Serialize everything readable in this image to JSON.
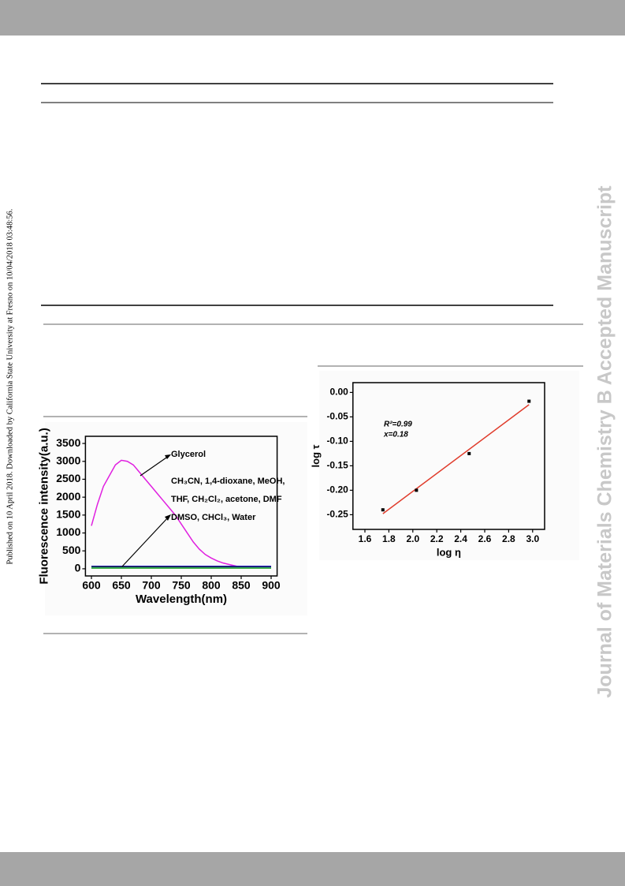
{
  "side_note": "Published on 10 April 2018. Downloaded by California State University at Fresno on 10/04/2018 03:48:56.",
  "watermark": "Journal of Materials Chemistry B Accepted Manuscript",
  "chart_data": [
    {
      "type": "line",
      "xlabel": "Wavelength(nm)",
      "ylabel": "Fluorescence intensity(a.u.)",
      "xlim": [
        590,
        910
      ],
      "xticks": [
        600,
        650,
        700,
        750,
        800,
        850,
        900
      ],
      "ylim": [
        -200,
        3700
      ],
      "yticks": [
        0,
        500,
        1000,
        1500,
        2000,
        2500,
        3000,
        3500
      ],
      "series": [
        {
          "name": "Glycerol",
          "color": "#e020e0",
          "x": [
            600,
            610,
            620,
            630,
            640,
            650,
            660,
            670,
            680,
            690,
            700,
            710,
            720,
            730,
            740,
            750,
            760,
            770,
            780,
            790,
            800,
            810,
            820,
            830,
            840,
            850,
            860,
            870,
            880,
            890,
            900
          ],
          "values": [
            1200,
            1800,
            2300,
            2600,
            2900,
            3030,
            3000,
            2900,
            2700,
            2500,
            2300,
            2100,
            1900,
            1700,
            1500,
            1250,
            1000,
            750,
            550,
            400,
            300,
            220,
            160,
            120,
            80,
            40,
            40,
            45,
            50,
            50,
            50
          ]
        },
        {
          "color": "#2020c0",
          "x": [
            600,
            900
          ],
          "values": [
            70,
            70
          ]
        },
        {
          "color": "#1a1a1a",
          "x": [
            600,
            900
          ],
          "values": [
            50,
            40
          ]
        },
        {
          "color": "#20a0a0",
          "x": [
            600,
            900
          ],
          "values": [
            30,
            25
          ]
        },
        {
          "color": "#40b040",
          "x": [
            600,
            900
          ],
          "values": [
            15,
            15
          ]
        }
      ],
      "annotations": [
        "Glycerol",
        "CH₃CN, 1,4-dioxane, MeOH,",
        "THF, CH₂Cl₂, acetone, DMF",
        "DMSO, CHCl₃, Water"
      ]
    },
    {
      "type": "scatter",
      "xlabel": "log η",
      "ylabel": "log τ",
      "xlim": [
        1.5,
        3.1
      ],
      "xticks": [
        1.6,
        1.8,
        {
          "value": 2,
          "label": "2.0"
        },
        2.2,
        2.4,
        2.6,
        2.8,
        {
          "value": 3,
          "label": "3.0"
        }
      ],
      "ylim": [
        -0.28,
        0.02
      ],
      "yticks": [
        {
          "value": 0,
          "label": "0.00"
        },
        {
          "value": -0.05,
          "label": "-0.05"
        },
        {
          "value": -0.1,
          "label": "-0.10"
        },
        {
          "value": -0.15,
          "label": "-0.15"
        },
        {
          "value": -0.2,
          "label": "-0.20"
        },
        {
          "value": -0.25,
          "label": "-0.25"
        }
      ],
      "x": [
        1.75,
        2.03,
        2.47,
        2.97
      ],
      "values": [
        -0.24,
        -0.2,
        -0.125,
        -0.018
      ],
      "color": "#000000",
      "fit": {
        "x": [
          1.75,
          2.97
        ],
        "y": [
          -0.248,
          -0.025
        ],
        "color": "#e03c2c"
      },
      "annotations": [
        "R²=0.99",
        "x=0.18"
      ]
    }
  ]
}
